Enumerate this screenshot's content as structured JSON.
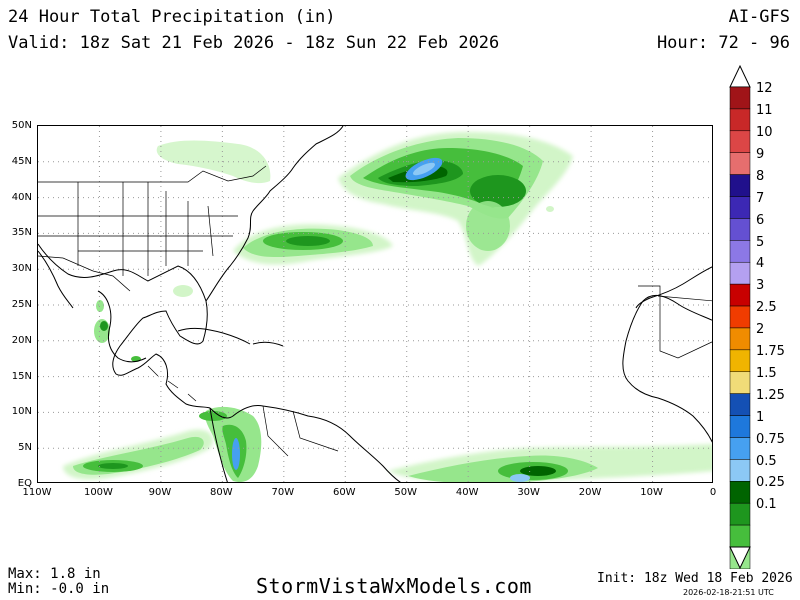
{
  "header": {
    "title": "24 Hour Total Precipitation (in)",
    "valid": "Valid: 18z Sat 21 Feb 2026 - 18z Sun 22 Feb 2026",
    "model": "AI-GFS",
    "hour": "Hour: 72 - 96"
  },
  "map": {
    "lat_labels": [
      "50N",
      "45N",
      "40N",
      "35N",
      "30N",
      "25N",
      "20N",
      "15N",
      "10N",
      "5N",
      "EQ"
    ],
    "lon_labels": [
      "110W",
      "100W",
      "90W",
      "80W",
      "70W",
      "60W",
      "50W",
      "40W",
      "30W",
      "20W",
      "10W",
      "0"
    ],
    "extent": {
      "lon_min": -110,
      "lon_max": 0,
      "lat_min": 0,
      "lat_max": 50
    }
  },
  "colorbar": {
    "labels": [
      "12",
      "11",
      "10",
      "9",
      "8",
      "7",
      "6",
      "5",
      "4",
      "3",
      "2.5",
      "2",
      "1.75",
      "1.5",
      "1.25",
      "1",
      "0.75",
      "0.5",
      "0.25",
      "0.1"
    ],
    "colors": [
      "#a01418",
      "#c82828",
      "#dc4646",
      "#e66e6e",
      "#20108c",
      "#3c28b4",
      "#6450d2",
      "#8c78e6",
      "#b4a0f0",
      "#c80000",
      "#f03c00",
      "#f08c00",
      "#f0b400",
      "#f0dc78",
      "#1450b4",
      "#1e78dc",
      "#46a0f0",
      "#8cc8f5",
      "#006400",
      "#1e961e",
      "#46be3c",
      "#96e68c",
      "#d2f5c8"
    ]
  },
  "footer": {
    "max": "Max: 1.8 in",
    "min": "Min: -0.0 in",
    "site": "StormVistaWxModels.com",
    "init": "Init: 18z Wed 18 Feb 2026",
    "stamp": "2026-02-18-21:51 UTC"
  }
}
